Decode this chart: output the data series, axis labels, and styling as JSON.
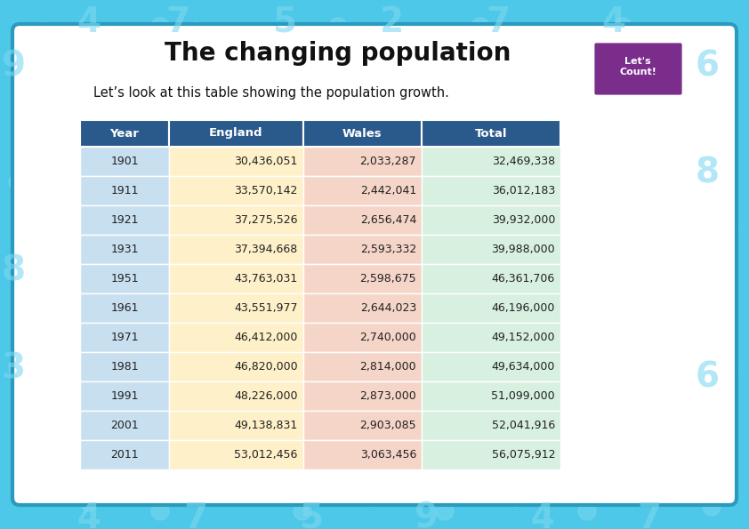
{
  "title": "The changing population",
  "subtitle": "Let’s look at this table showing the population growth.",
  "columns": [
    "Year",
    "England",
    "Wales",
    "Total"
  ],
  "rows": [
    [
      "1901",
      "30,436,051",
      "2,033,287",
      "32,469,338"
    ],
    [
      "1911",
      "33,570,142",
      "2,442,041",
      "36,012,183"
    ],
    [
      "1921",
      "37,275,526",
      "2,656,474",
      "39,932,000"
    ],
    [
      "1931",
      "37,394,668",
      "2,593,332",
      "39,988,000"
    ],
    [
      "1951",
      "43,763,031",
      "2,598,675",
      "46,361,706"
    ],
    [
      "1961",
      "43,551,977",
      "2,644,023",
      "46,196,000"
    ],
    [
      "1971",
      "46,412,000",
      "2,740,000",
      "49,152,000"
    ],
    [
      "1981",
      "46,820,000",
      "2,814,000",
      "49,634,000"
    ],
    [
      "1991",
      "48,226,000",
      "2,873,000",
      "51,099,000"
    ],
    [
      "2001",
      "49,138,831",
      "2,903,085",
      "52,041,916"
    ],
    [
      "2011",
      "53,012,456",
      "3,063,456",
      "56,075,912"
    ]
  ],
  "header_bg": "#2a5a8c",
  "header_text": "#ffffff",
  "col0_bg": "#c8dff0",
  "col1_bg": "#fef0c8",
  "col2_bg": "#f5d5c8",
  "col3_bg": "#d8f0e0",
  "page_bg": "#4dc8e8",
  "white_bg": "#ffffff",
  "title_color": "#111111",
  "subtitle_color": "#111111",
  "row_text_color": "#222222",
  "title_fontsize": 20,
  "subtitle_fontsize": 10.5,
  "table_fontsize": 9.5,
  "border_color": "#2a9abf",
  "lets_count_bg": "#7b2d8b"
}
